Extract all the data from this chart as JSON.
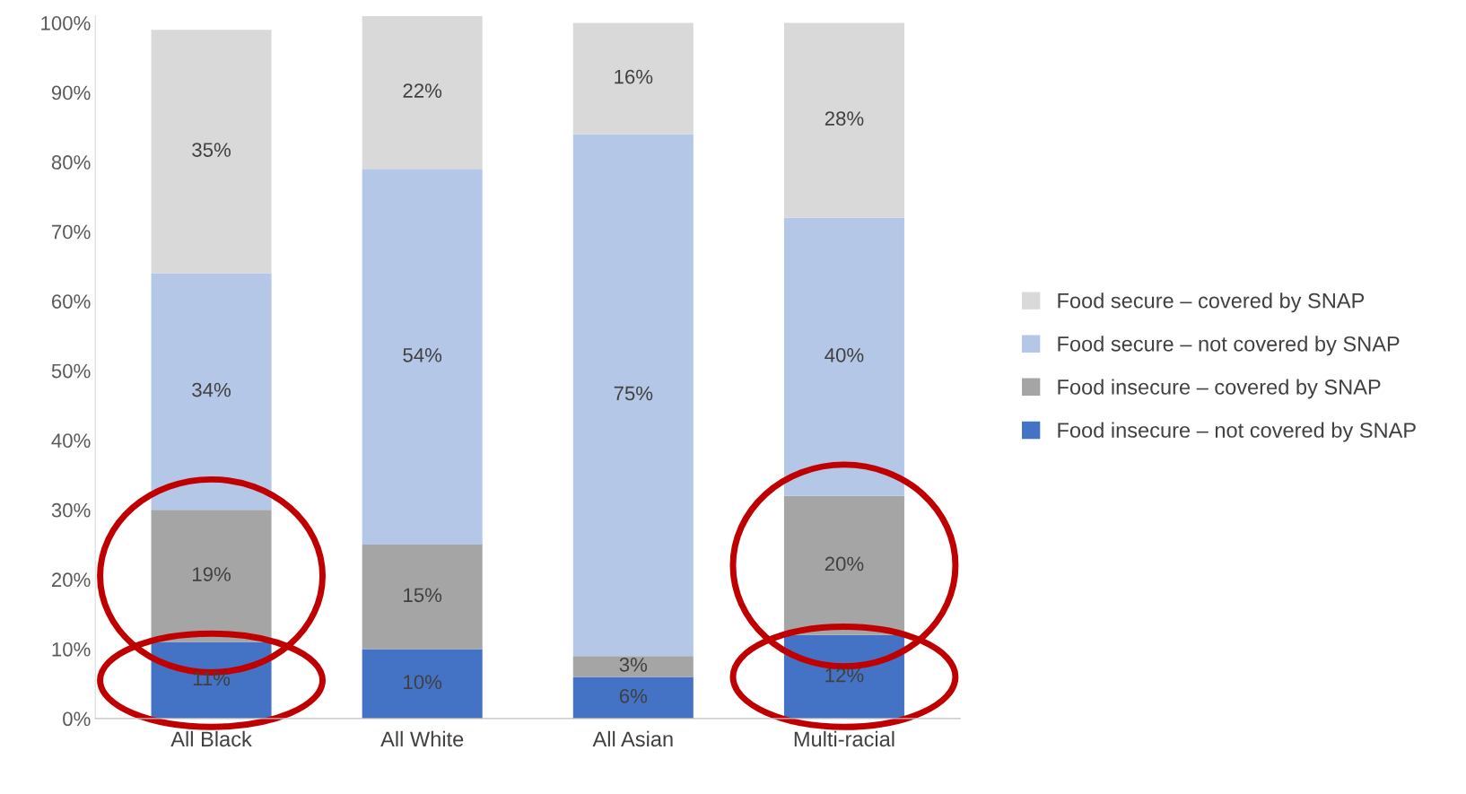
{
  "chart_data": {
    "type": "bar",
    "stacked": true,
    "categories": [
      "All Black",
      "All White",
      "All Asian",
      "Multi-racial"
    ],
    "series": [
      {
        "name": "Food insecure – not covered by SNAP",
        "color": "#4472c4",
        "values": [
          11,
          10,
          6,
          12
        ],
        "value_labels": [
          "11%",
          "10%",
          "6%",
          "12%"
        ]
      },
      {
        "name": "Food insecure – covered by SNAP",
        "color": "#a5a5a5",
        "values": [
          19,
          15,
          3,
          20
        ],
        "value_labels": [
          "19%",
          "15%",
          "3%",
          "20%"
        ]
      },
      {
        "name": "Food secure – not covered by SNAP",
        "color": "#b4c7e7",
        "values": [
          34,
          54,
          75,
          40
        ],
        "value_labels": [
          "34%",
          "54%",
          "75%",
          "40%"
        ]
      },
      {
        "name": "Food secure – covered by SNAP",
        "color": "#d9d9d9",
        "values": [
          35,
          22,
          16,
          28
        ],
        "value_labels": [
          "35%",
          "22%",
          "16%",
          "28%"
        ]
      }
    ],
    "ylim": [
      0,
      101
    ],
    "yticks": [
      {
        "value": 0,
        "label": "0%"
      },
      {
        "value": 10,
        "label": "10%"
      },
      {
        "value": 20,
        "label": "20%"
      },
      {
        "value": 30,
        "label": "30%"
      },
      {
        "value": 40,
        "label": "40%"
      },
      {
        "value": 50,
        "label": "50%"
      },
      {
        "value": 60,
        "label": "60%"
      },
      {
        "value": 70,
        "label": "70%"
      },
      {
        "value": 80,
        "label": "80%"
      },
      {
        "value": 90,
        "label": "90%"
      },
      {
        "value": 100,
        "label": "100%"
      }
    ],
    "legend": "right",
    "grid": false
  }
}
